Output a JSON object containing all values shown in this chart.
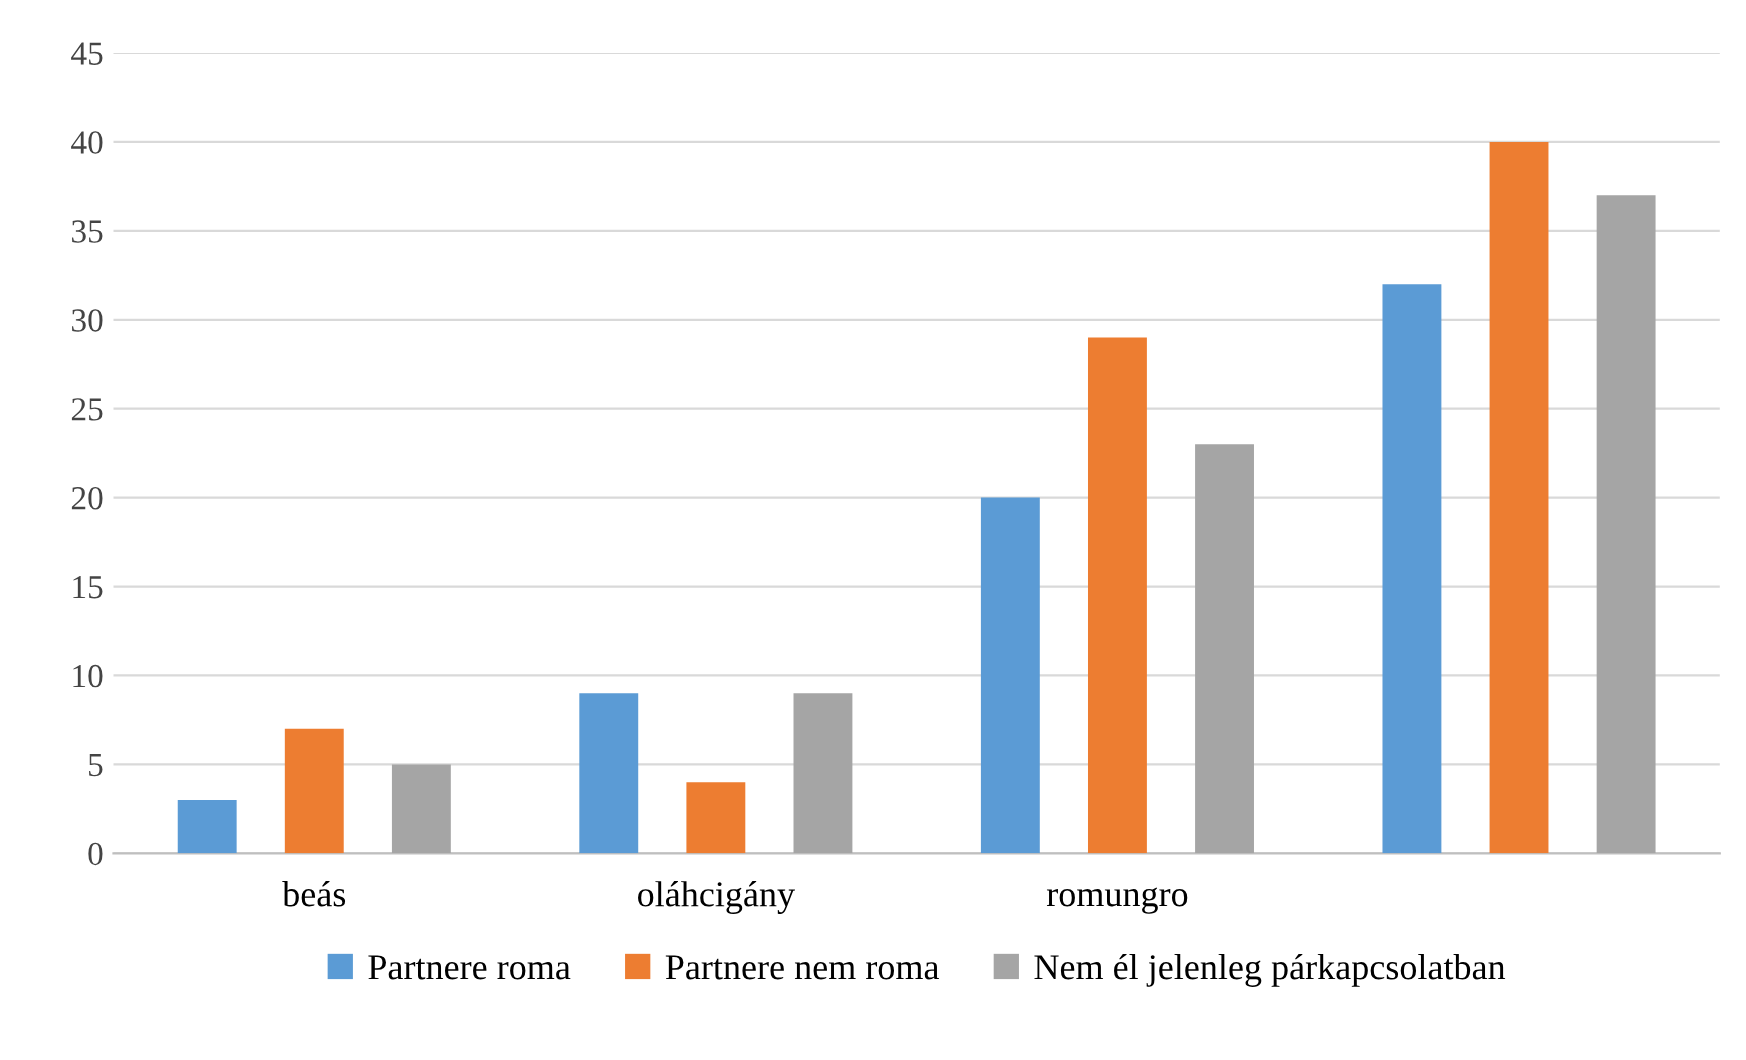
{
  "chart_data": {
    "type": "bar",
    "categories": [
      "beás",
      "oláhcigány",
      "romungro",
      null
    ],
    "series": [
      {
        "name": "Partnere roma",
        "color": "#5b9bd5",
        "values": [
          3,
          9,
          20,
          32
        ]
      },
      {
        "name": "Partnere nem roma",
        "color": "#ed7d31",
        "values": [
          7,
          4,
          29,
          40
        ]
      },
      {
        "name": "Nem él jelenleg párkapcsolatban",
        "color": "#a5a5a5",
        "values": [
          5,
          9,
          23,
          37
        ]
      }
    ],
    "ylim": [
      0,
      45
    ],
    "yticks": [
      0,
      5,
      10,
      15,
      20,
      25,
      30,
      35,
      40,
      45
    ],
    "grid": "y",
    "legend": "bottom"
  }
}
